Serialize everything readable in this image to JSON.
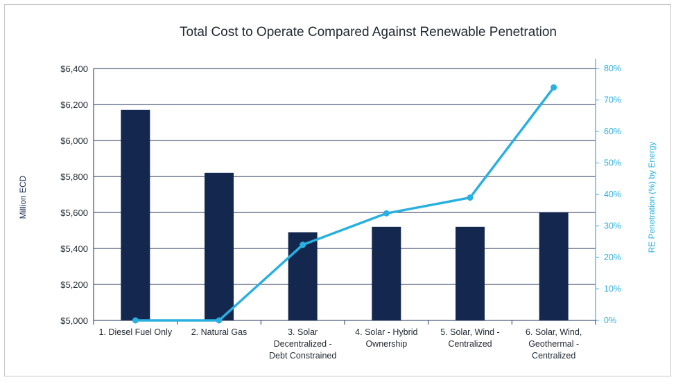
{
  "chart_data": {
    "type": "bar",
    "title": "Total Cost to Operate Compared Against Renewable Penetration",
    "categories": [
      [
        "1. Diesel Fuel Only"
      ],
      [
        "2. Natural Gas"
      ],
      [
        "3. Solar",
        "Decentralized -",
        "Debt Constrained"
      ],
      [
        "4. Solar - Hybrid",
        "Ownership"
      ],
      [
        "5. Solar, Wind -",
        "Centralized"
      ],
      [
        "6. Solar, Wind,",
        "Geothermal -",
        "Centralized"
      ]
    ],
    "ylabel": "Million ECD",
    "y2label": "RE Penetration (%) by Energy",
    "ylim": [
      5000,
      6400
    ],
    "y2lim": [
      0,
      80
    ],
    "yticks": [
      "$5,000",
      "$5,200",
      "$5,400",
      "$5,600",
      "$5,800",
      "$6,000",
      "$6,200",
      "$6,400"
    ],
    "y2ticks": [
      "0%",
      "10%",
      "20%",
      "30%",
      "40%",
      "50%",
      "60%",
      "70%",
      "80%"
    ],
    "grid": true,
    "series": [
      {
        "kind": "bar",
        "axis": "left",
        "color": "#14284f",
        "values": [
          6170,
          5820,
          5490,
          5520,
          5520,
          5600
        ]
      },
      {
        "kind": "line",
        "axis": "right",
        "color": "#2ab0e0",
        "values": [
          0,
          0,
          24,
          34,
          39,
          74
        ]
      }
    ]
  }
}
